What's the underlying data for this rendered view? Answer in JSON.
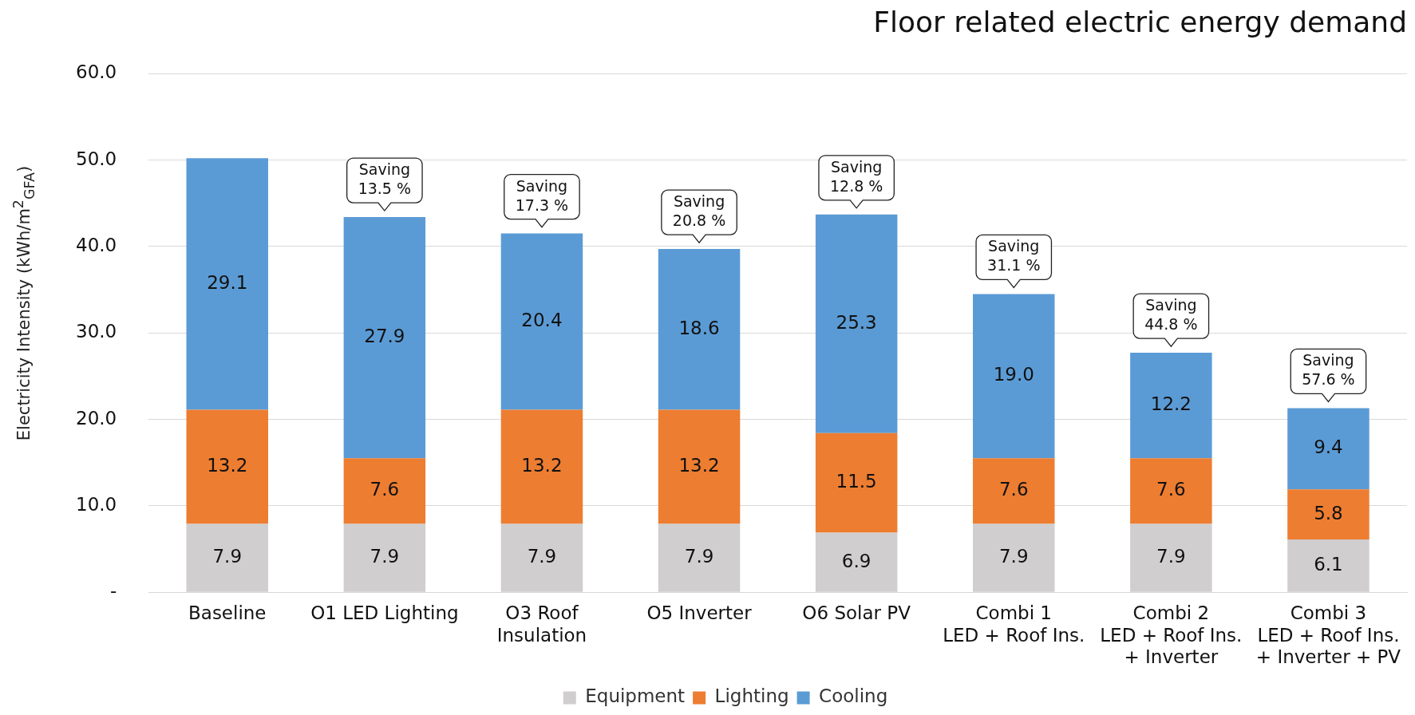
{
  "chart_data": {
    "type": "bar",
    "title": "Floor related electric energy demand",
    "ylabel": "Electricity Intensity (kWh/m$^{2}$$_{GFA}$)",
    "categories": [
      "Baseline",
      "O1 LED Lighting",
      "O3 Roof\nInsulation",
      "O5 Inverter",
      "O6 Solar PV",
      "Combi 1\nLED + Roof Ins.",
      "Combi 2\nLED + Roof Ins.\n+ Inverter",
      "Combi 3\nLED + Roof Ins.\n+ Inverter + PV"
    ],
    "series": [
      {
        "name": "Equipment",
        "color": "#d0cece",
        "values": [
          7.9,
          7.9,
          7.9,
          7.9,
          6.9,
          7.9,
          7.9,
          6.1
        ]
      },
      {
        "name": "Lighting",
        "color": "#ed7d31",
        "values": [
          13.2,
          7.6,
          13.2,
          13.2,
          11.5,
          7.6,
          7.6,
          5.8
        ]
      },
      {
        "name": "Cooling",
        "color": "#5b9bd5",
        "values": [
          29.1,
          27.9,
          20.4,
          18.6,
          25.3,
          19.0,
          12.2,
          9.4
        ],
        "value_labels": [
          "29.1",
          "27.9",
          "20.4",
          "18.6",
          "25.3",
          "19.0",
          "12.2",
          "9.4"
        ]
      }
    ],
    "stacked": true,
    "data_labels": true,
    "grid": "y",
    "legend": "bottom",
    "ylim": [
      0,
      60
    ],
    "yticks": [
      {
        "value": 0,
        "label": "-"
      },
      {
        "value": 10,
        "label": "10.0"
      },
      {
        "value": 20,
        "label": "20.0"
      },
      {
        "value": 30,
        "label": "30.0"
      },
      {
        "value": 40,
        "label": "40.0"
      },
      {
        "value": 50,
        "label": "50.0"
      },
      {
        "value": 60,
        "label": "60.0"
      }
    ],
    "annotations": [
      {
        "text": "Saving\n13.5 %",
        "x": "O1 LED Lighting",
        "y": 43.4
      },
      {
        "text": "Saving\n17.3 %",
        "x": "O3 Roof\nInsulation",
        "y": 41.5
      },
      {
        "text": "Saving\n20.8 %",
        "x": "O5 Inverter",
        "y": 39.7
      },
      {
        "text": "Saving\n12.8 %",
        "x": "O6 Solar PV",
        "y": 43.7
      },
      {
        "text": "Saving\n31.1 %",
        "x": "Combi 1\nLED + Roof Ins.",
        "y": 34.5
      },
      {
        "text": "Saving\n44.8 %",
        "x": "Combi 2\nLED + Roof Ins.\n+ Inverter",
        "y": 27.7
      },
      {
        "text": "Saving\n57.6 %",
        "x": "Combi 3\nLED + Roof Ins.\n+ Inverter + PV",
        "y": 21.3
      }
    ]
  }
}
